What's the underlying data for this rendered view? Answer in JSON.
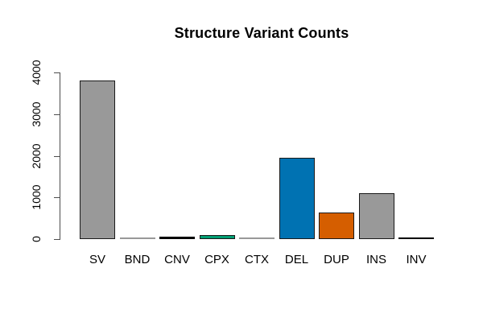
{
  "title": "Structure Variant Counts",
  "chart_data": {
    "type": "bar",
    "title": "Structure Variant Counts",
    "xlabel": "",
    "ylabel": "",
    "categories": [
      "SV",
      "BND",
      "CNV",
      "CPX",
      "CTX",
      "DEL",
      "DUP",
      "INS",
      "INV"
    ],
    "values": [
      3800,
      5,
      50,
      105,
      5,
      1950,
      635,
      1110,
      25
    ],
    "bar_fill_colors": [
      "#999999",
      "#999999",
      "#000000",
      "#009E73",
      "#999999",
      "#0072B2",
      "#D55E00",
      "#999999",
      "#000000"
    ],
    "bar_border_colors": [
      "#1a1a1a",
      "#999999",
      "#000000",
      "#1a1a1a",
      "#999999",
      "#1a1a1a",
      "#1a1a1a",
      "#1a1a1a",
      "#000000"
    ],
    "ylim": [
      0,
      4000
    ],
    "yticks": [
      0,
      1000,
      2000,
      3000,
      4000
    ],
    "ytick_labels": [
      "0",
      "1000",
      "2000",
      "3000",
      "4000"
    ],
    "grid": false,
    "legend": "none",
    "axis_color": "#4d4d4d",
    "background": "#ffffff"
  }
}
